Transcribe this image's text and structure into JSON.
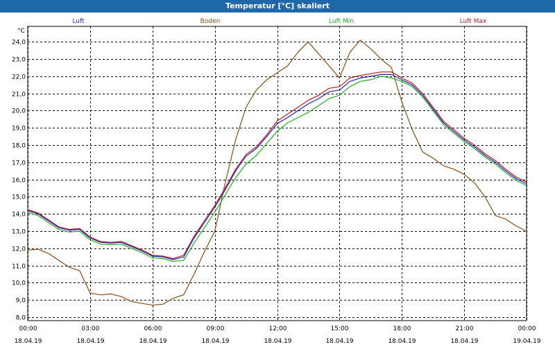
{
  "window": {
    "title": "Temperatur [°C] skaliert"
  },
  "chart_data": {
    "type": "line",
    "title": "Temperatur [°C] skaliert",
    "ylabel": "°C",
    "xlabel": "",
    "ylim": [
      7.8,
      24.9
    ],
    "xlim": [
      0,
      24
    ],
    "grid": true,
    "legend_position": "top",
    "yticks": [
      8.0,
      9.0,
      10.0,
      11.0,
      12.0,
      13.0,
      14.0,
      15.0,
      16.0,
      17.0,
      18.0,
      19.0,
      20.0,
      21.0,
      22.0,
      23.0,
      24.0
    ],
    "ytick_labels": [
      "8,0",
      "9,0",
      "10,0",
      "11,0",
      "12,0",
      "13,0",
      "14,0",
      "15,0",
      "16,0",
      "17,0",
      "18,0",
      "19,0",
      "20,0",
      "21,0",
      "22,0",
      "23,0",
      "24,0"
    ],
    "xticks": [
      0,
      3,
      6,
      9,
      12,
      15,
      18,
      21,
      24
    ],
    "xtick_times": [
      "00:00",
      "03:00",
      "06:00",
      "09:00",
      "12:00",
      "15:00",
      "18:00",
      "21:00",
      "00:00"
    ],
    "xtick_dates": [
      "18.04.19",
      "18.04.19",
      "18.04.19",
      "18.04.19",
      "18.04.19",
      "18.04.19",
      "18.04.19",
      "18.04.19",
      "19.04.19"
    ],
    "series": [
      {
        "name": "Luft",
        "color": "#1f1fc0",
        "x": [
          0,
          0.5,
          1,
          1.5,
          2,
          2.5,
          3,
          3.5,
          4,
          4.5,
          5,
          5.5,
          6,
          6.5,
          7,
          7.5,
          8,
          8.5,
          9,
          9.5,
          10,
          10.5,
          11,
          11.5,
          12,
          12.5,
          13,
          13.5,
          14,
          14.5,
          15,
          15.5,
          16,
          16.5,
          17,
          17.5,
          18,
          18.5,
          19,
          19.5,
          20,
          20.5,
          21,
          21.5,
          22,
          22.5,
          23,
          23.5,
          24
        ],
        "values": [
          14.2,
          14.0,
          13.6,
          13.2,
          13.05,
          13.1,
          12.6,
          12.35,
          12.3,
          12.35,
          12.1,
          11.85,
          11.55,
          11.5,
          11.35,
          11.5,
          12.6,
          13.5,
          14.4,
          15.4,
          16.5,
          17.35,
          17.8,
          18.5,
          19.25,
          19.6,
          20.0,
          20.4,
          20.7,
          21.1,
          21.2,
          21.7,
          21.9,
          22.0,
          22.1,
          22.1,
          21.8,
          21.5,
          20.9,
          20.1,
          19.3,
          18.8,
          18.3,
          17.9,
          17.4,
          17.0,
          16.5,
          16.05,
          15.75
        ]
      },
      {
        "name": "Boden",
        "color": "#8b4a0f",
        "x": [
          0,
          0.5,
          1,
          1.5,
          2,
          2.5,
          3,
          3.5,
          4,
          4.5,
          5,
          5.5,
          6,
          6.5,
          7,
          7.5,
          8,
          8.5,
          9,
          9.5,
          10,
          10.5,
          11,
          11.5,
          12,
          12.5,
          13,
          13.5,
          14,
          14.5,
          15,
          15.5,
          16,
          16.5,
          17,
          17.5,
          18,
          18.5,
          19,
          19.5,
          20,
          20.5,
          21,
          21.5,
          22,
          22.5,
          23,
          23.5,
          24
        ],
        "values": [
          11.9,
          11.95,
          11.7,
          11.3,
          10.9,
          10.7,
          9.4,
          9.3,
          9.35,
          9.2,
          8.9,
          8.8,
          8.7,
          8.75,
          9.1,
          9.3,
          10.5,
          11.8,
          13.0,
          15.8,
          18.3,
          20.2,
          21.2,
          21.8,
          22.2,
          22.6,
          23.4,
          24.0,
          23.3,
          22.6,
          21.9,
          23.4,
          24.1,
          23.6,
          23.0,
          22.5,
          20.5,
          18.9,
          17.6,
          17.25,
          16.8,
          16.6,
          16.3,
          15.8,
          15.0,
          13.9,
          13.7,
          13.3,
          13.0
        ]
      },
      {
        "name": "Luft Min",
        "color": "#18b018",
        "x": [
          0,
          0.5,
          1,
          1.5,
          2,
          2.5,
          3,
          3.5,
          4,
          4.5,
          5,
          5.5,
          6,
          6.5,
          7,
          7.5,
          8,
          8.5,
          9,
          9.5,
          10,
          10.5,
          11,
          11.5,
          12,
          12.5,
          13,
          13.5,
          14,
          14.5,
          15,
          15.5,
          16,
          16.5,
          17,
          17.5,
          18,
          18.5,
          19,
          19.5,
          20,
          20.5,
          21,
          21.5,
          22,
          22.5,
          23,
          23.5,
          24
        ],
        "values": [
          14.1,
          13.9,
          13.5,
          13.1,
          12.95,
          13.0,
          12.5,
          12.25,
          12.2,
          12.25,
          12.0,
          11.75,
          11.45,
          11.4,
          11.25,
          11.3,
          12.3,
          13.2,
          14.1,
          15.1,
          16.1,
          16.9,
          17.4,
          18.1,
          18.8,
          19.3,
          19.6,
          19.9,
          20.3,
          20.7,
          20.9,
          21.4,
          21.7,
          21.8,
          22.0,
          21.9,
          21.7,
          21.4,
          20.8,
          20.0,
          19.2,
          18.7,
          18.2,
          17.8,
          17.3,
          16.9,
          16.4,
          15.95,
          15.65
        ]
      },
      {
        "name": "Luft Max",
        "color": "#c01818",
        "x": [
          0,
          0.5,
          1,
          1.5,
          2,
          2.5,
          3,
          3.5,
          4,
          4.5,
          5,
          5.5,
          6,
          6.5,
          7,
          7.5,
          8,
          8.5,
          9,
          9.5,
          10,
          10.5,
          11,
          11.5,
          12,
          12.5,
          13,
          13.5,
          14,
          14.5,
          15,
          15.5,
          16,
          16.5,
          17,
          17.5,
          18,
          18.5,
          19,
          19.5,
          20,
          20.5,
          21,
          21.5,
          22,
          22.5,
          23,
          23.5,
          24
        ],
        "values": [
          14.25,
          14.05,
          13.65,
          13.25,
          13.1,
          13.15,
          12.65,
          12.4,
          12.35,
          12.4,
          12.15,
          11.9,
          11.6,
          11.55,
          11.4,
          11.6,
          12.7,
          13.6,
          14.5,
          15.5,
          16.6,
          17.45,
          17.9,
          18.6,
          19.4,
          19.8,
          20.2,
          20.6,
          20.9,
          21.3,
          21.4,
          21.9,
          22.05,
          22.15,
          22.25,
          22.25,
          21.9,
          21.6,
          21.0,
          20.2,
          19.4,
          18.9,
          18.4,
          18.0,
          17.5,
          17.1,
          16.6,
          16.15,
          15.85
        ]
      }
    ]
  }
}
